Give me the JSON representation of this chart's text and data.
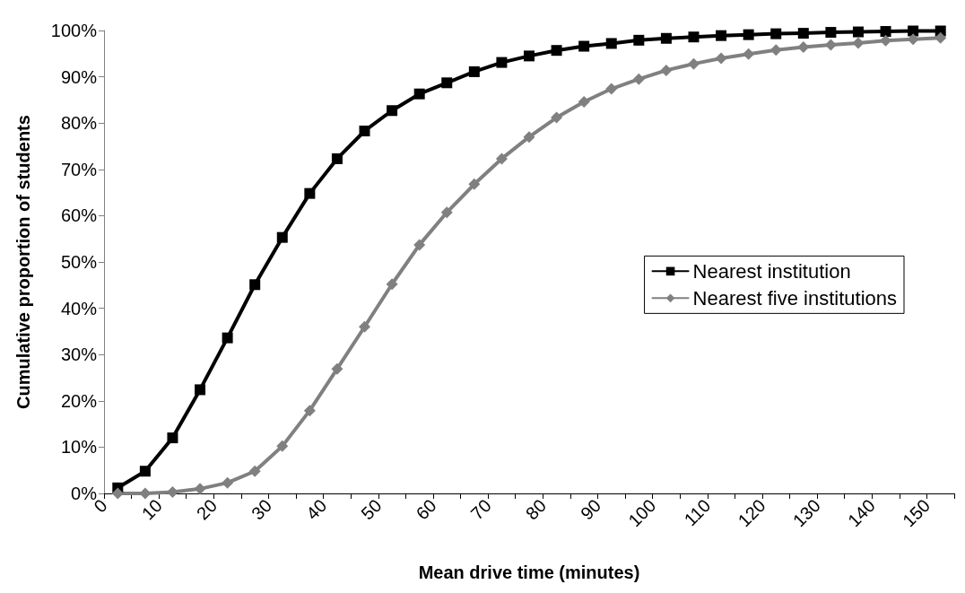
{
  "chart_data": {
    "type": "line",
    "xlabel": "Mean drive time (minutes)",
    "ylabel": "Cumulative proportion of students",
    "x": [
      2.5,
      7.5,
      12.5,
      17.5,
      22.5,
      27.5,
      32.5,
      37.5,
      42.5,
      47.5,
      52.5,
      57.5,
      62.5,
      67.5,
      72.5,
      77.5,
      82.5,
      87.5,
      92.5,
      97.5,
      102.5,
      107.5,
      112.5,
      117.5,
      122.5,
      127.5,
      132.5,
      137.5,
      142.5,
      147.5,
      152.5
    ],
    "series": [
      {
        "name": "Nearest institution",
        "color": "#000000",
        "marker": "square",
        "values": [
          1.2,
          4.8,
          12.0,
          22.4,
          33.6,
          45.1,
          55.3,
          64.8,
          72.3,
          78.3,
          82.7,
          86.3,
          88.7,
          91.1,
          93.1,
          94.5,
          95.7,
          96.6,
          97.2,
          97.9,
          98.3,
          98.6,
          98.9,
          99.1,
          99.3,
          99.4,
          99.6,
          99.7,
          99.8,
          99.9,
          99.9
        ]
      },
      {
        "name": "Nearest five institutions",
        "color": "#808080",
        "marker": "diamond",
        "values": [
          0,
          0,
          0.3,
          1.0,
          2.3,
          4.8,
          10.2,
          17.9,
          26.9,
          36.0,
          45.2,
          53.7,
          60.7,
          66.8,
          72.3,
          77.0,
          81.2,
          84.6,
          87.4,
          89.5,
          91.4,
          92.8,
          94.0,
          94.9,
          95.8,
          96.4,
          96.9,
          97.3,
          97.8,
          98.1,
          98.4
        ]
      }
    ],
    "xlim": [
      0,
      155
    ],
    "xticks": [
      0,
      {
        "value": 5,
        "label": null
      },
      10,
      {
        "value": 15,
        "label": null
      },
      20,
      {
        "value": 25,
        "label": null
      },
      30,
      {
        "value": 35,
        "label": null
      },
      40,
      {
        "value": 45,
        "label": null
      },
      50,
      {
        "value": 55,
        "label": null
      },
      60,
      {
        "value": 65,
        "label": null
      },
      70,
      {
        "value": 75,
        "label": null
      },
      80,
      {
        "value": 85,
        "label": null
      },
      90,
      {
        "value": 95,
        "label": null
      },
      100,
      {
        "value": 105,
        "label": null
      },
      110,
      {
        "value": 115,
        "label": null
      },
      120,
      {
        "value": 125,
        "label": null
      },
      130,
      {
        "value": 135,
        "label": null
      },
      140,
      {
        "value": 145,
        "label": null
      },
      150,
      {
        "value": 155,
        "label": null
      }
    ],
    "ylim": [
      0,
      100
    ],
    "yticks": [
      {
        "value": 0,
        "label": "0%"
      },
      {
        "value": 10,
        "label": "10%"
      },
      {
        "value": 20,
        "label": "20%"
      },
      {
        "value": 30,
        "label": "30%"
      },
      {
        "value": 40,
        "label": "40%"
      },
      {
        "value": 50,
        "label": "50%"
      },
      {
        "value": 60,
        "label": "60%"
      },
      {
        "value": 70,
        "label": "70%"
      },
      {
        "value": 80,
        "label": "80%"
      },
      {
        "value": 90,
        "label": "90%"
      },
      {
        "value": 100,
        "label": "100%"
      }
    ],
    "grid": false,
    "legend": "right",
    "line_style": "solid"
  }
}
